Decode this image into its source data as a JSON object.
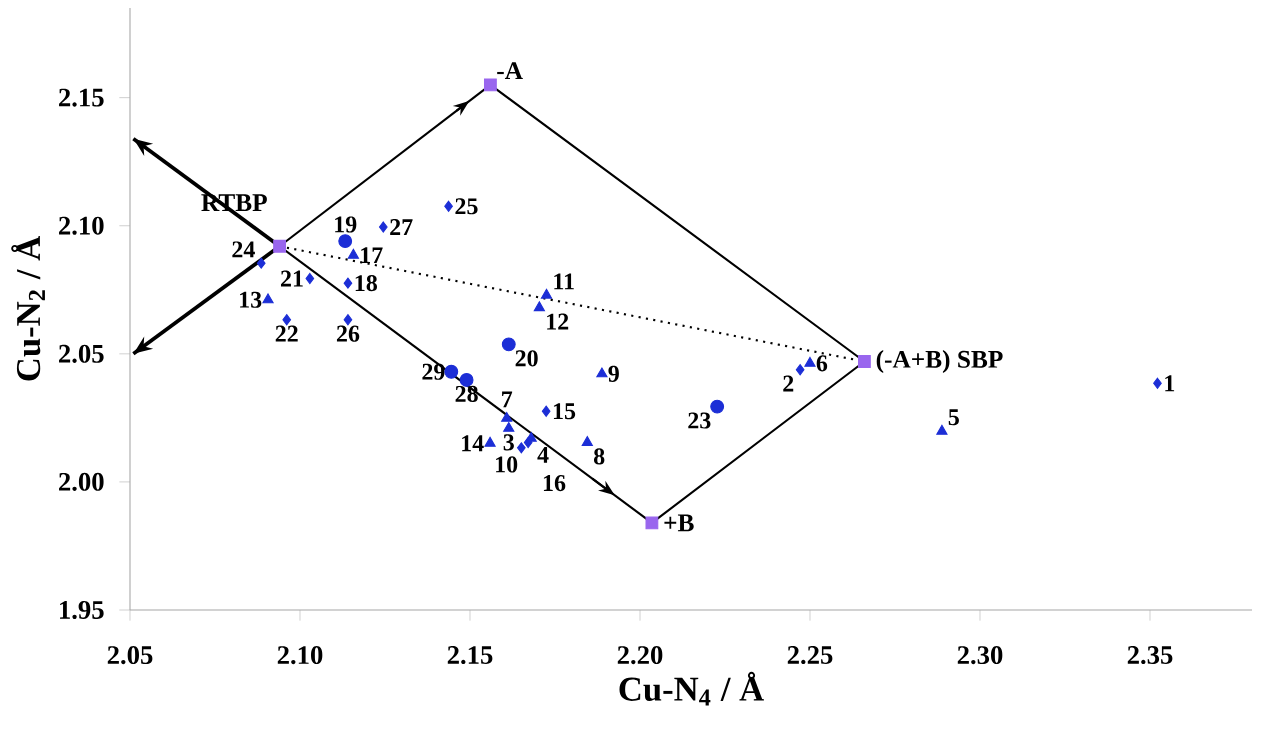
{
  "chart_data": {
    "type": "scatter",
    "xlabel": "Cu-N$_{4}$ / Å",
    "ylabel": "Cu-N$_{2}$ / Å",
    "xlim": [
      2.05,
      2.38
    ],
    "ylim": [
      1.95,
      2.185
    ],
    "xticks": [
      2.05,
      {
        "value": 2.1,
        "label": "2.10"
      },
      2.15,
      {
        "value": 2.2,
        "label": "2.20"
      },
      2.25,
      {
        "value": 2.3,
        "label": "2.30"
      },
      2.35
    ],
    "yticks": [
      1.95,
      {
        "value": 2.0,
        "label": "2.00"
      },
      2.05,
      {
        "value": 2.1,
        "label": "2.10"
      },
      2.15
    ],
    "series": [
      {
        "type": "line",
        "color": "#000000",
        "marker": "none",
        "line_style": "solid",
        "x": [
          2.094,
          2.156
        ],
        "values": [
          2.092,
          2.155
        ]
      },
      {
        "type": "line",
        "color": "#000000",
        "marker": "none",
        "line_style": "solid",
        "x": [
          2.094,
          2.2035
        ],
        "values": [
          2.092,
          1.984
        ]
      },
      {
        "type": "line",
        "color": "#000000",
        "marker": "none",
        "line_style": "solid",
        "x": [
          2.156,
          2.266,
          2.2035
        ],
        "values": [
          2.155,
          2.047,
          1.984
        ]
      },
      {
        "type": "line",
        "color": "#000000",
        "marker": "none",
        "line_style": "solid",
        "x": [
          2.094,
          2.051
        ],
        "values": [
          2.092,
          2.134
        ]
      },
      {
        "type": "line",
        "color": "#000000",
        "marker": "none",
        "line_style": "solid",
        "x": [
          2.094,
          2.051
        ],
        "values": [
          2.092,
          2.05
        ]
      },
      {
        "type": "line",
        "color": "#000000",
        "marker": "none",
        "line_style": "dotted",
        "x": [
          2.094,
          2.266
        ],
        "values": [
          2.092,
          2.047
        ]
      },
      {
        "color": "#1c2ed6",
        "marker": "diamond",
        "x": [
          2.0886,
          2.1245,
          2.1437,
          2.1029,
          2.1141,
          2.0961,
          2.1141,
          2.1651,
          2.1671,
          2.1724,
          2.2471,
          2.3522
        ],
        "values": [
          2.0854,
          2.0995,
          2.1076,
          2.0794,
          2.0776,
          2.0633,
          2.0633,
          2.0133,
          2.0154,
          2.0276,
          2.0438,
          2.0385
        ]
      },
      {
        "color": "#1c2ed6",
        "marker": "triangle",
        "x": [
          2.1157,
          2.0906,
          2.1725,
          2.1704,
          2.1888,
          2.1608,
          2.1614,
          2.1559,
          2.168,
          2.1845,
          2.25,
          2.2888
        ],
        "values": [
          2.0885,
          2.0711,
          2.0729,
          2.068,
          2.0422,
          2.0248,
          2.0209,
          2.0151,
          2.017,
          2.0154,
          2.0463,
          2.0198
        ]
      },
      {
        "color": "#1c2ed6",
        "marker": "circle",
        "x": [
          2.1133,
          2.1614,
          2.1445,
          2.149,
          2.2227
        ],
        "values": [
          2.094,
          2.0537,
          2.043,
          2.0398,
          2.0294
        ]
      },
      {
        "color": "#9966ee",
        "marker": "square",
        "x": [
          2.156,
          2.094,
          2.266,
          2.2035
        ],
        "values": [
          2.155,
          2.092,
          2.047,
          1.984
        ]
      }
    ],
    "annotations": [
      {
        "text": "-A",
        "x": 2.156,
        "y": 2.155
      },
      {
        "text": "RTBP",
        "x": 2.094,
        "y": 2.092
      },
      {
        "text": "(-A+B) SBP",
        "x": 2.266,
        "y": 2.047
      },
      {
        "text": "+B",
        "x": 2.2035,
        "y": 1.984
      },
      {
        "text": "24",
        "x": 2.0886,
        "y": 2.0854
      },
      {
        "text": "27",
        "x": 2.1245,
        "y": 2.0995
      },
      {
        "text": "25",
        "x": 2.1437,
        "y": 2.1076
      },
      {
        "text": "21",
        "x": 2.1029,
        "y": 2.0794
      },
      {
        "text": "18",
        "x": 2.1141,
        "y": 2.0776
      },
      {
        "text": "22",
        "x": 2.0961,
        "y": 2.0633
      },
      {
        "text": "26",
        "x": 2.1141,
        "y": 2.0633
      },
      {
        "text": "10",
        "x": 2.1651,
        "y": 2.0133
      },
      {
        "text": "16",
        "x": 2.1671,
        "y": 2.0154
      },
      {
        "text": "15",
        "x": 2.1724,
        "y": 2.0276
      },
      {
        "text": "2",
        "x": 2.2471,
        "y": 2.0438
      },
      {
        "text": "1",
        "x": 2.3522,
        "y": 2.0385
      },
      {
        "text": "17",
        "x": 2.1157,
        "y": 2.0885
      },
      {
        "text": "13",
        "x": 2.0906,
        "y": 2.0711
      },
      {
        "text": "11",
        "x": 2.1725,
        "y": 2.0729
      },
      {
        "text": "12",
        "x": 2.1704,
        "y": 2.068
      },
      {
        "text": "9",
        "x": 2.1888,
        "y": 2.0422
      },
      {
        "text": "7",
        "x": 2.1608,
        "y": 2.0248
      },
      {
        "text": "3",
        "x": 2.1614,
        "y": 2.0209
      },
      {
        "text": "14",
        "x": 2.1559,
        "y": 2.0151
      },
      {
        "text": "4",
        "x": 2.168,
        "y": 2.017
      },
      {
        "text": "8",
        "x": 2.1845,
        "y": 2.0154
      },
      {
        "text": "6",
        "x": 2.25,
        "y": 2.0463
      },
      {
        "text": "5",
        "x": 2.2888,
        "y": 2.0198
      },
      {
        "text": "19",
        "x": 2.1133,
        "y": 2.094
      },
      {
        "text": "20",
        "x": 2.1614,
        "y": 2.0537
      },
      {
        "text": "29",
        "x": 2.1445,
        "y": 2.043
      },
      {
        "text": "28",
        "x": 2.149,
        "y": 2.0398
      },
      {
        "text": "23",
        "x": 2.2227,
        "y": 2.0294
      }
    ]
  }
}
